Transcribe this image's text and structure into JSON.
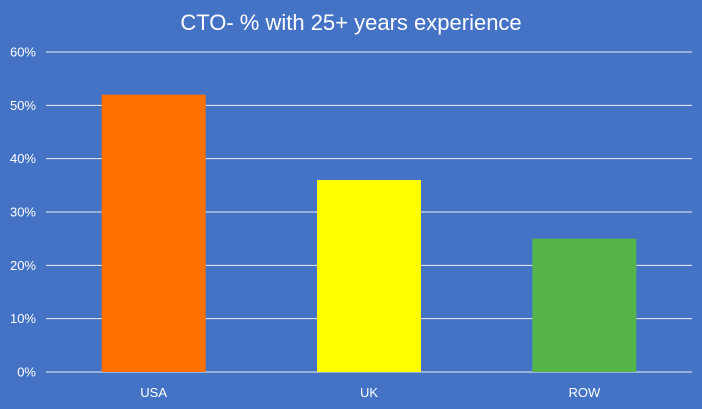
{
  "chart_data": {
    "type": "bar",
    "title": "CTO- % with 25+ years experience",
    "categories": [
      "USA",
      "UK",
      "ROW"
    ],
    "values": [
      52,
      36,
      25
    ],
    "colors": [
      "#FF7000",
      "#FFFF00",
      "#55B447"
    ],
    "ylim": [
      0,
      60
    ],
    "yticks": [
      0,
      10,
      20,
      30,
      40,
      50,
      60
    ],
    "ytick_labels": [
      "0%",
      "10%",
      "20%",
      "30%",
      "40%",
      "50%",
      "60%"
    ],
    "grid": true,
    "legend": "none",
    "background": "#4472C4"
  }
}
